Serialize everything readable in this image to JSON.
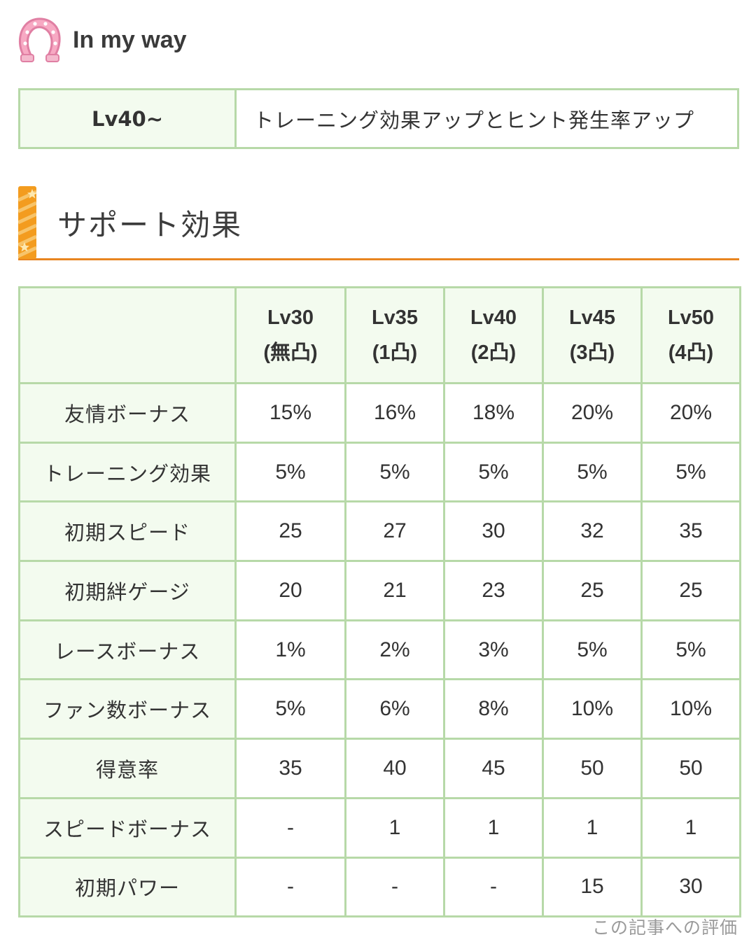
{
  "skill": {
    "icon": "horseshoe-icon",
    "name": "In my way",
    "level": "Lv40~",
    "description": "トレーニング効果アップとヒント発生率アップ"
  },
  "section": {
    "title": "サポート効果",
    "accent_color": "#e8851f"
  },
  "support_table": {
    "corner": "",
    "columns": [
      {
        "level": "Lv30",
        "uncap": "(無凸)"
      },
      {
        "level": "Lv35",
        "uncap": "(1凸)"
      },
      {
        "level": "Lv40",
        "uncap": "(2凸)"
      },
      {
        "level": "Lv45",
        "uncap": "(3凸)"
      },
      {
        "level": "Lv50",
        "uncap": "(4凸)"
      }
    ],
    "rows": [
      {
        "label": "友情ボーナス",
        "values": [
          "15%",
          "16%",
          "18%",
          "20%",
          "20%"
        ]
      },
      {
        "label": "トレーニング効果",
        "values": [
          "5%",
          "5%",
          "5%",
          "5%",
          "5%"
        ]
      },
      {
        "label": "初期スピード",
        "values": [
          "25",
          "27",
          "30",
          "32",
          "35"
        ]
      },
      {
        "label": "初期絆ゲージ",
        "values": [
          "20",
          "21",
          "23",
          "25",
          "25"
        ]
      },
      {
        "label": "レースボーナス",
        "values": [
          "1%",
          "2%",
          "3%",
          "5%",
          "5%"
        ]
      },
      {
        "label": "ファン数ボーナス",
        "values": [
          "5%",
          "6%",
          "8%",
          "10%",
          "10%"
        ]
      },
      {
        "label": "得意率",
        "values": [
          "35",
          "40",
          "45",
          "50",
          "50"
        ]
      },
      {
        "label": "スピードボーナス",
        "values": [
          "-",
          "1",
          "1",
          "1",
          "1"
        ]
      },
      {
        "label": "初期パワー",
        "values": [
          "-",
          "-",
          "-",
          "15",
          "30"
        ]
      }
    ],
    "border_color": "#b7d9a8",
    "header_bg": "#f3fbef"
  },
  "footer": {
    "rating_label": "この記事への評価"
  }
}
